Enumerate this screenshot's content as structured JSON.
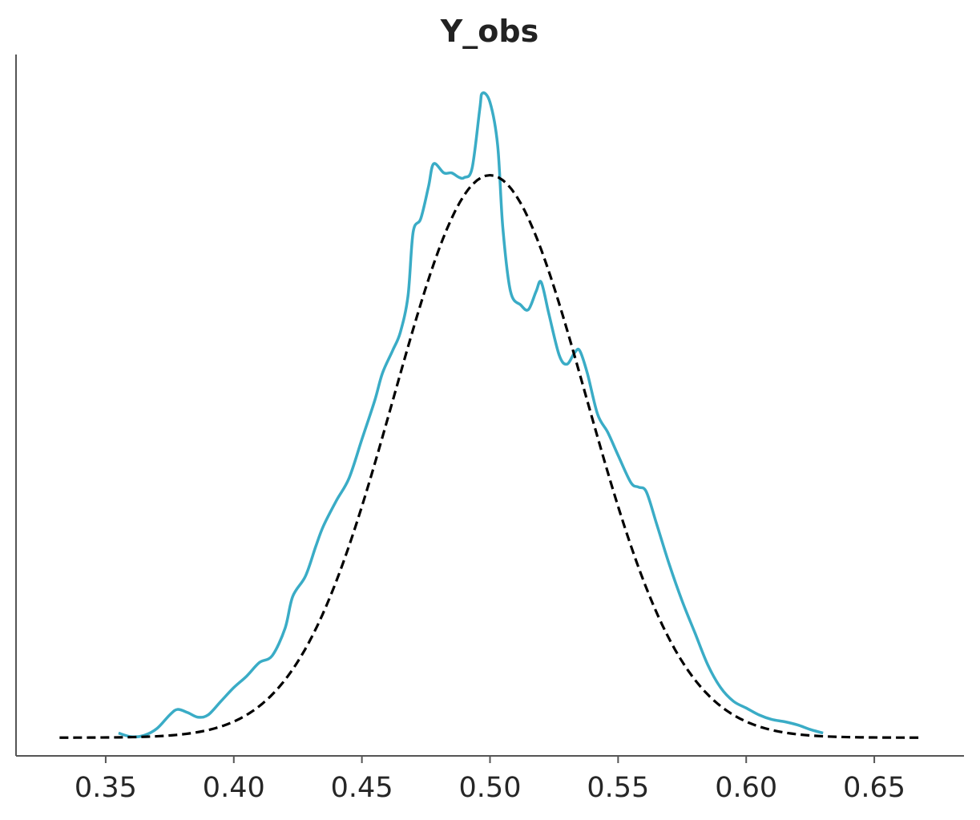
{
  "chart_data": {
    "type": "line",
    "title": "Y_obs",
    "xlabel": "",
    "ylabel": "",
    "xlim": [
      0.315,
      0.685
    ],
    "ylim": [
      -0.4,
      15.0
    ],
    "x_ticks": [
      "0.35",
      "0.40",
      "0.45",
      "0.50",
      "0.55",
      "0.60",
      "0.65"
    ],
    "y_ticks_visible": false,
    "grid": false,
    "legend": "none",
    "series": [
      {
        "style": "solid",
        "color": "#3aacc6",
        "points": [
          [
            0.355,
            0.1
          ],
          [
            0.36,
            0.02
          ],
          [
            0.365,
            0.05
          ],
          [
            0.37,
            0.2
          ],
          [
            0.375,
            0.5
          ],
          [
            0.378,
            0.62
          ],
          [
            0.382,
            0.55
          ],
          [
            0.386,
            0.45
          ],
          [
            0.39,
            0.5
          ],
          [
            0.395,
            0.8
          ],
          [
            0.4,
            1.1
          ],
          [
            0.405,
            1.35
          ],
          [
            0.41,
            1.65
          ],
          [
            0.415,
            1.8
          ],
          [
            0.42,
            2.4
          ],
          [
            0.423,
            3.1
          ],
          [
            0.428,
            3.55
          ],
          [
            0.432,
            4.2
          ],
          [
            0.435,
            4.65
          ],
          [
            0.44,
            5.2
          ],
          [
            0.445,
            5.7
          ],
          [
            0.45,
            6.55
          ],
          [
            0.455,
            7.4
          ],
          [
            0.458,
            8.0
          ],
          [
            0.462,
            8.5
          ],
          [
            0.465,
            8.9
          ],
          [
            0.468,
            9.7
          ],
          [
            0.47,
            11.1
          ],
          [
            0.473,
            11.4
          ],
          [
            0.476,
            12.1
          ],
          [
            0.478,
            12.6
          ],
          [
            0.482,
            12.4
          ],
          [
            0.485,
            12.4
          ],
          [
            0.488,
            12.3
          ],
          [
            0.49,
            12.3
          ],
          [
            0.493,
            12.5
          ],
          [
            0.496,
            13.8
          ],
          [
            0.497,
            14.15
          ],
          [
            0.5,
            13.95
          ],
          [
            0.503,
            13.0
          ],
          [
            0.505,
            11.2
          ],
          [
            0.508,
            9.8
          ],
          [
            0.512,
            9.5
          ],
          [
            0.515,
            9.4
          ],
          [
            0.518,
            9.8
          ],
          [
            0.52,
            10.0
          ],
          [
            0.523,
            9.3
          ],
          [
            0.527,
            8.4
          ],
          [
            0.53,
            8.2
          ],
          [
            0.533,
            8.45
          ],
          [
            0.535,
            8.5
          ],
          [
            0.538,
            8.0
          ],
          [
            0.542,
            7.1
          ],
          [
            0.546,
            6.7
          ],
          [
            0.55,
            6.2
          ],
          [
            0.555,
            5.6
          ],
          [
            0.558,
            5.5
          ],
          [
            0.561,
            5.4
          ],
          [
            0.565,
            4.7
          ],
          [
            0.57,
            3.8
          ],
          [
            0.575,
            3.0
          ],
          [
            0.58,
            2.3
          ],
          [
            0.585,
            1.6
          ],
          [
            0.59,
            1.1
          ],
          [
            0.595,
            0.8
          ],
          [
            0.6,
            0.65
          ],
          [
            0.605,
            0.5
          ],
          [
            0.61,
            0.4
          ],
          [
            0.615,
            0.35
          ],
          [
            0.62,
            0.28
          ],
          [
            0.625,
            0.18
          ],
          [
            0.63,
            0.1
          ]
        ]
      },
      {
        "style": "dashed",
        "color": "#000000",
        "distribution": "normal",
        "mean": 0.5,
        "sd": 0.0375,
        "peak": 12.35,
        "x_range": [
          0.332,
          0.668
        ]
      }
    ]
  }
}
